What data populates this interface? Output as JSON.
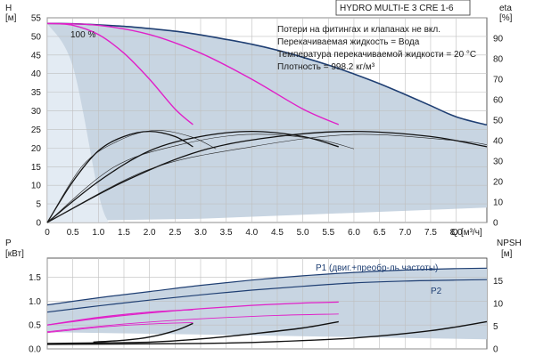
{
  "chart_data": [
    {
      "type": "line",
      "panel": "head_efficiency",
      "title": "HYDRO MULTI-E 3 CRE 1-6",
      "ylabel_left": "H",
      "yunit_left": "[м]",
      "ylabel_right": "eta",
      "yunit_right": "[%]",
      "xlabel": "Q",
      "xunit": "[м³/ч]",
      "xlim": [
        0,
        8.6
      ],
      "ylim_left": [
        0,
        55
      ],
      "ylim_right": [
        0,
        100
      ],
      "x_ticks": [
        "0",
        "0.5",
        "1.0",
        "1.5",
        "2.0",
        "2.5",
        "3.0",
        "3.5",
        "4.0",
        "4.5",
        "5.0",
        "5.5",
        "6.0",
        "6.5",
        "7.0",
        "7.5",
        "8.0"
      ],
      "y_ticks_left": [
        "0",
        "5",
        "10",
        "15",
        "20",
        "25",
        "30",
        "35",
        "40",
        "45",
        "50",
        "55"
      ],
      "y_ticks_right": [
        "0",
        "10",
        "20",
        "30",
        "40",
        "50",
        "60",
        "70",
        "80",
        "90"
      ],
      "notes": [
        "Потери на фитингах и клапанах не вкл.",
        "Перекачиваемая жидкость = Вода",
        "Температура перекачиваемой жидкости = 20 °C",
        "Плотность = 998.2 кг/м³"
      ],
      "speed_label": "100 %",
      "series": [
        {
          "role": "max_curve",
          "color": "#1f3f73",
          "x": [
            0,
            0.5,
            1,
            1.5,
            2,
            2.5,
            3,
            3.5,
            4,
            4.5,
            5,
            5.5,
            6,
            6.5,
            7,
            7.5,
            8,
            8.6
          ],
          "y": [
            53.5,
            53.4,
            53.1,
            52.7,
            52.1,
            51.4,
            50.4,
            49.2,
            47.9,
            46.3,
            44.4,
            42.3,
            39.9,
            37.3,
            34.4,
            31.4,
            28.4,
            26.2
          ]
        },
        {
          "role": "single_pump",
          "color": "#e020c8",
          "x": [
            0,
            0.5,
            1,
            1.5,
            2,
            2.5,
            2.85
          ],
          "y": [
            53.5,
            53.0,
            50.5,
            45.5,
            38.5,
            30.5,
            26.3
          ]
        },
        {
          "role": "two_pumps",
          "color": "#e020c8",
          "x": [
            0,
            1,
            2,
            3,
            4,
            5,
            5.7
          ],
          "y": [
            53.5,
            53.0,
            50.5,
            45.5,
            38.5,
            30.5,
            26.3
          ]
        },
        {
          "role": "efficiency_1",
          "color": "#111111",
          "x": [
            0,
            0.5,
            1,
            1.5,
            2,
            2.5,
            2.85
          ],
          "y": [
            0,
            20,
            35,
            42,
            44.5,
            42,
            37
          ]
        },
        {
          "role": "efficiency_2",
          "color": "#111111",
          "x": [
            0,
            1,
            2,
            3,
            4,
            5,
            5.7
          ],
          "y": [
            0,
            20,
            35,
            42,
            44.5,
            42,
            37
          ]
        },
        {
          "role": "efficiency_3",
          "color": "#111111",
          "x": [
            0,
            1.5,
            3,
            4.5,
            6,
            7.5,
            8.6
          ],
          "y": [
            0,
            20,
            35,
            42,
            44.5,
            42,
            37
          ]
        }
      ]
    },
    {
      "type": "line",
      "panel": "power_npsh",
      "ylabel_left": "P",
      "yunit_left": "[кВт]",
      "ylabel_right": "NPSH",
      "yunit_right": "[м]",
      "xlim": [
        0,
        8.6
      ],
      "ylim_left": [
        0,
        1.9
      ],
      "ylim_right": [
        0,
        20
      ],
      "y_ticks_left": [
        "0.0",
        "0.5",
        "1.0",
        "1.5"
      ],
      "y_ticks_right": [
        "0",
        "5",
        "10",
        "15"
      ],
      "series": [
        {
          "name": "P1 (двиг.+преобр-ль частоты)",
          "color": "#1f3f73",
          "x": [
            0,
            1,
            2,
            3,
            4,
            5,
            6,
            7,
            8,
            8.6
          ],
          "y": [
            0.92,
            1.07,
            1.2,
            1.33,
            1.44,
            1.53,
            1.6,
            1.65,
            1.68,
            1.69
          ]
        },
        {
          "name": "P2",
          "color": "#1f3f73",
          "x": [
            0,
            1,
            2,
            3,
            4,
            5,
            6,
            7,
            8,
            8.6
          ],
          "y": [
            0.77,
            0.9,
            1.02,
            1.13,
            1.23,
            1.31,
            1.38,
            1.42,
            1.44,
            1.45
          ]
        },
        {
          "role": "p1_single",
          "color": "#e020c8",
          "x": [
            0,
            1,
            2,
            2.85
          ],
          "y": [
            0.5,
            0.66,
            0.77,
            0.82
          ]
        },
        {
          "role": "p1_two",
          "color": "#e020c8",
          "x": [
            0,
            1,
            2,
            3,
            4,
            5,
            5.7
          ],
          "y": [
            0.5,
            0.64,
            0.75,
            0.84,
            0.91,
            0.96,
            0.98
          ]
        },
        {
          "role": "npsh_1",
          "color": "#111111",
          "x": [
            0.9,
            1.5,
            2,
            2.5,
            2.85
          ],
          "y": [
            1.5,
            1.9,
            2.6,
            4.0,
            5.6
          ]
        },
        {
          "role": "npsh_2",
          "color": "#111111",
          "x": [
            0,
            2,
            3,
            4,
            5,
            5.7
          ],
          "y": [
            1.2,
            1.5,
            2.2,
            3.3,
            4.6,
            6.0
          ]
        },
        {
          "role": "npsh_3",
          "color": "#111111",
          "x": [
            0,
            3,
            4.5,
            6,
            7.5,
            8.6
          ],
          "y": [
            1.0,
            1.2,
            1.6,
            2.4,
            4.0,
            6.0
          ]
        }
      ],
      "legend": [
        {
          "label": "P1 (двиг.+преобр-ль частоты)"
        },
        {
          "label": "P2"
        }
      ]
    }
  ]
}
